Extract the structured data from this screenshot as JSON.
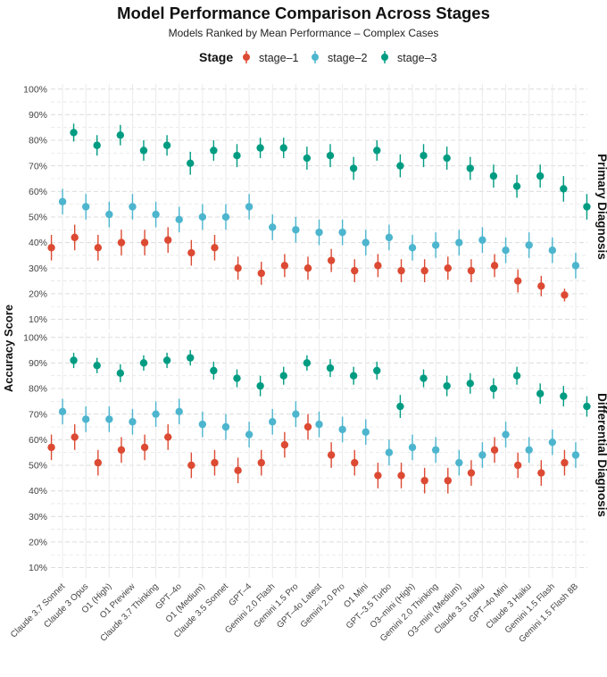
{
  "chart_data": {
    "type": "scatter",
    "title": "Model Performance Comparison Across Stages",
    "subtitle": "Models Ranked by Mean Performance – Complex Cases",
    "ylabel": "Accuracy Score",
    "xlabel": "",
    "legend": {
      "title": "Stage",
      "position": "top"
    },
    "ylim": [
      6,
      102
    ],
    "yticks": [
      10,
      20,
      30,
      40,
      50,
      60,
      70,
      80,
      90,
      100
    ],
    "ytick_labels": [
      "10%",
      "20%",
      "30%",
      "40%",
      "50%",
      "60%",
      "70%",
      "80%",
      "90%",
      "100%"
    ],
    "categories": [
      "Claude 3.7 Sonnet",
      "Claude 3 Opus",
      "O1 (High)",
      "O1 Preview",
      "Claude 3.7 Thinking",
      "GPT–4o",
      "O1 (Medium)",
      "Claude 3.5 Sonnet",
      "GPT–4",
      "Gemini 2.0 Flash",
      "Gemini 1.5 Pro",
      "GPT–4o Latest",
      "Gemini 2.0 Pro",
      "O1 Mini",
      "GPT–3.5 Turbo",
      "O3–mini (High)",
      "Gemini 2.0 Thinking",
      "O3–mini (Medium)",
      "Claude 3.5 Haiku",
      "GPT–4o Mini",
      "Claude 3 Haiku",
      "Gemini 1.5 Flash",
      "Gemini 1.5 Flash 8B"
    ],
    "stages": [
      {
        "name": "stage–1",
        "color": "#DC4A33"
      },
      {
        "name": "stage–2",
        "color": "#4DB5CE"
      },
      {
        "name": "stage–3",
        "color": "#009C82"
      }
    ],
    "panels": [
      {
        "label": "Primary Diagnosis",
        "series": [
          {
            "name": "stage–1",
            "values": [
              38,
              42,
              38,
              40,
              40,
              41,
              36,
              38,
              30,
              28,
              31,
              30,
              33,
              29,
              31,
              29,
              29,
              30,
              29,
              31,
              25,
              23,
              19.5
            ],
            "err": [
              5,
              5,
              5,
              5,
              5,
              5,
              5,
              5,
              4.5,
              4.5,
              4.5,
              4.5,
              4.5,
              4.5,
              4.5,
              4.5,
              4.5,
              4.5,
              4.5,
              4.5,
              4.5,
              4,
              2.5
            ]
          },
          {
            "name": "stage–2",
            "values": [
              56,
              54,
              51,
              54,
              51,
              49,
              50,
              50,
              54,
              46,
              45,
              44,
              44,
              40,
              42,
              38,
              39,
              40,
              41,
              37,
              39,
              37,
              31
            ],
            "err": [
              5,
              5,
              5,
              5,
              5,
              5,
              5,
              5,
              5,
              5,
              5,
              5,
              5,
              5,
              5,
              5,
              5,
              5,
              5,
              5,
              5,
              5,
              5
            ]
          },
          {
            "name": "stage–3",
            "values": [
              83,
              78,
              82,
              76,
              78,
              71,
              76,
              74,
              77,
              77,
              73,
              74,
              69,
              76,
              70,
              74,
              73,
              69,
              66,
              62,
              66,
              61,
              54
            ],
            "err": [
              3.5,
              4,
              4,
              4,
              4,
              4.5,
              4,
              4.5,
              4,
              4,
              4.5,
              4.5,
              4.5,
              4,
              4.5,
              4.5,
              4.5,
              4.5,
              4.5,
              4.5,
              4.5,
              5,
              5
            ]
          }
        ]
      },
      {
        "label": "Differential Diagnosis",
        "series": [
          {
            "name": "stage–1",
            "values": [
              57,
              61,
              51,
              56,
              57,
              61,
              50,
              51,
              48,
              51,
              58,
              65,
              54,
              51,
              46,
              46,
              44,
              44,
              47,
              56,
              50,
              47,
              51
            ],
            "err": [
              5,
              5,
              5,
              5,
              5,
              5,
              5,
              5,
              5,
              5,
              5,
              5,
              5,
              5,
              5,
              5,
              5,
              5,
              5,
              5,
              5,
              5,
              5
            ]
          },
          {
            "name": "stage–2",
            "values": [
              71,
              68,
              68,
              67,
              70,
              71,
              66,
              65,
              62,
              67,
              70,
              66,
              64,
              63,
              55,
              57,
              56,
              51,
              54,
              62,
              56,
              59,
              54
            ],
            "err": [
              5,
              5,
              5,
              5,
              5,
              5,
              5,
              5,
              5,
              5,
              5,
              5,
              5,
              5,
              5,
              5,
              5,
              5,
              5,
              5,
              5,
              5,
              5
            ]
          },
          {
            "name": "stage–3",
            "values": [
              91,
              89,
              86,
              90,
              91,
              92,
              87,
              84,
              81,
              85,
              90,
              88,
              85,
              87,
              73,
              84,
              81,
              82,
              80,
              85,
              78,
              77,
              73
            ],
            "err": [
              3,
              3,
              3.5,
              3,
              3,
              3,
              3.5,
              3.5,
              4,
              3.5,
              3,
              3.5,
              3.5,
              3.5,
              4.5,
              3.5,
              4,
              4,
              4,
              3.5,
              4,
              4,
              4
            ]
          }
        ]
      }
    ]
  }
}
